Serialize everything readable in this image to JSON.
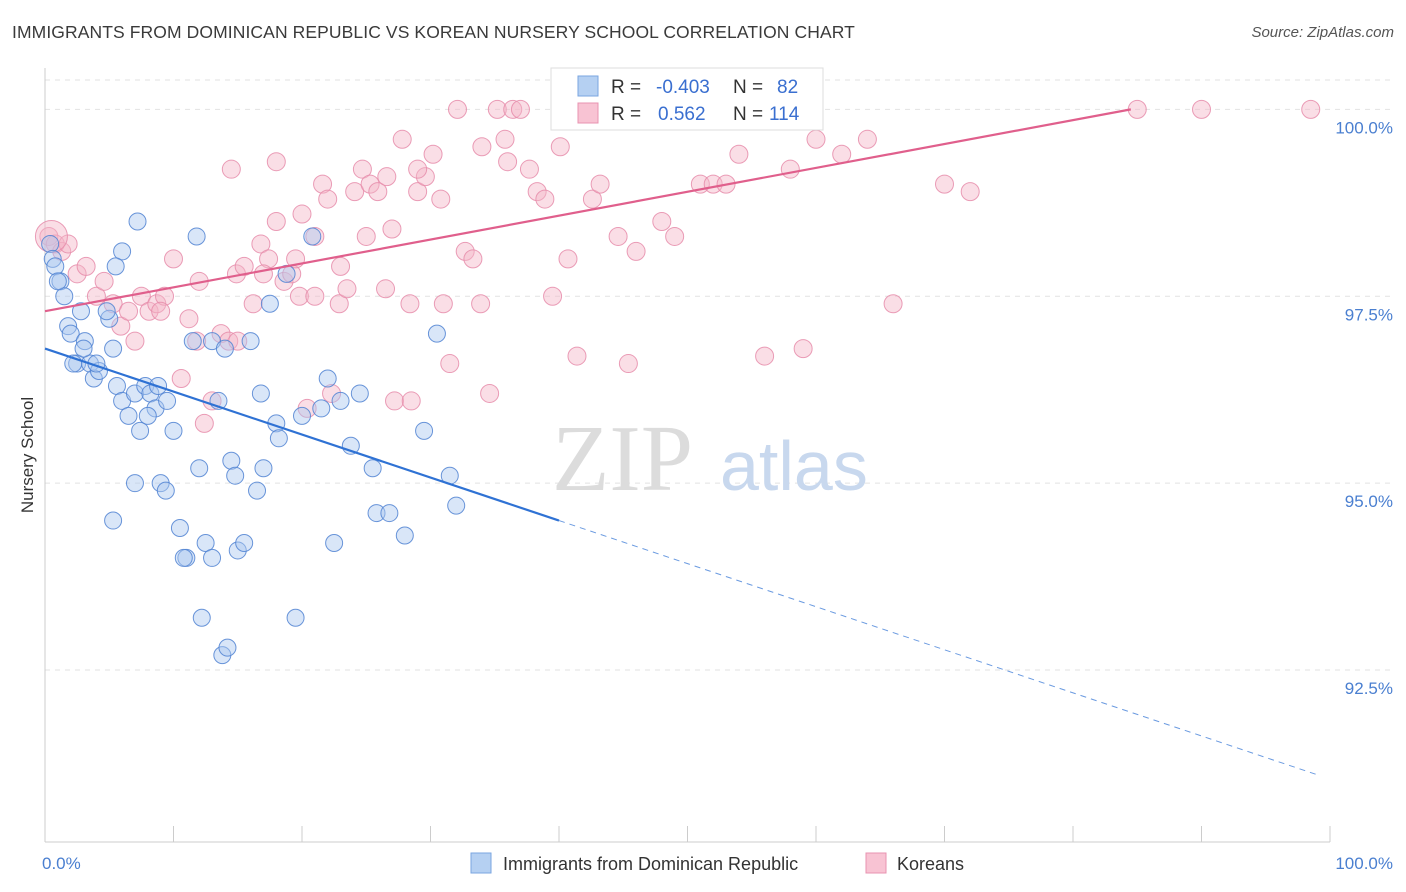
{
  "title": "IMMIGRANTS FROM DOMINICAN REPUBLIC VS KOREAN NURSERY SCHOOL CORRELATION CHART",
  "source": "Source: ZipAtlas.com",
  "watermark": {
    "zip": "ZIP",
    "atlas": "atlas"
  },
  "colors": {
    "blue": "#4a86d8",
    "blue_fill": "#aac8f0",
    "pink": "#e06690",
    "pink_fill": "#f5b5c8",
    "grid": "#dddddd",
    "tick_label": "#4a7fd0"
  },
  "legend_top": {
    "rows": [
      {
        "r_label": "R =",
        "r_value": "-0.403",
        "n_label": "N =",
        "n_value": "82"
      },
      {
        "r_label": "R =",
        "r_value": "0.562",
        "n_label": "N =",
        "n_value": "114"
      }
    ]
  },
  "legend_bottom": [
    "Immigrants from Dominican Republic",
    "Koreans"
  ],
  "chart_data": {
    "type": "scatter",
    "title": "IMMIGRANTS FROM DOMINICAN REPUBLIC VS KOREAN NURSERY SCHOOL CORRELATION CHART",
    "xlabel": "",
    "ylabel": "Nursery School",
    "xlim": [
      0,
      100
    ],
    "ylim": [
      90.2,
      100.5
    ],
    "x_tick_labels": [
      "0.0%",
      "100.0%"
    ],
    "y_ticks": [
      92.5,
      95.0,
      97.5,
      100.0
    ],
    "y_tick_labels": [
      "92.5%",
      "95.0%",
      "97.5%",
      "100.0%"
    ],
    "grid": true,
    "legend_placement": "bottom",
    "series": [
      {
        "name": "Immigrants from Dominican Republic",
        "r": -0.403,
        "n": 82,
        "trend": {
          "x0": 0,
          "y0": 96.8,
          "x1": 40,
          "y1": 94.5,
          "dashed_to_x": 99,
          "dashed_to_y": 91.1
        },
        "points": [
          [
            0.4,
            98.2
          ],
          [
            0.6,
            98.0
          ],
          [
            0.8,
            97.9
          ],
          [
            1.2,
            97.7
          ],
          [
            1.5,
            97.5
          ],
          [
            1.8,
            97.1
          ],
          [
            2.0,
            97.0
          ],
          [
            2.5,
            96.6
          ],
          [
            2.8,
            97.3
          ],
          [
            3.1,
            96.9
          ],
          [
            3.5,
            96.6
          ],
          [
            3.8,
            96.4
          ],
          [
            4.2,
            96.5
          ],
          [
            5.0,
            97.2
          ],
          [
            5.3,
            96.8
          ],
          [
            5.6,
            96.3
          ],
          [
            6.0,
            96.1
          ],
          [
            6.5,
            95.9
          ],
          [
            7.0,
            96.2
          ],
          [
            7.4,
            95.7
          ],
          [
            7.8,
            96.3
          ],
          [
            8.2,
            96.2
          ],
          [
            8.6,
            96.0
          ],
          [
            9.0,
            95.0
          ],
          [
            9.4,
            94.9
          ],
          [
            10.0,
            95.7
          ],
          [
            10.5,
            94.4
          ],
          [
            11.0,
            94.0
          ],
          [
            11.5,
            96.9
          ],
          [
            12.0,
            95.2
          ],
          [
            12.5,
            94.2
          ],
          [
            13.0,
            96.9
          ],
          [
            13.5,
            96.1
          ],
          [
            14.0,
            96.8
          ],
          [
            14.5,
            95.3
          ],
          [
            15.0,
            94.1
          ],
          [
            15.5,
            94.2
          ],
          [
            16.0,
            96.9
          ],
          [
            16.5,
            94.9
          ],
          [
            17.0,
            95.2
          ],
          [
            17.5,
            97.4
          ],
          [
            18.0,
            95.8
          ],
          [
            18.8,
            97.8
          ],
          [
            19.5,
            93.2
          ],
          [
            20.0,
            95.9
          ],
          [
            20.8,
            98.3
          ],
          [
            21.5,
            96.0
          ],
          [
            22.0,
            96.4
          ],
          [
            22.5,
            94.2
          ],
          [
            23.0,
            96.1
          ],
          [
            23.8,
            95.5
          ],
          [
            24.5,
            96.2
          ],
          [
            25.5,
            95.2
          ],
          [
            25.8,
            94.6
          ],
          [
            26.8,
            94.6
          ],
          [
            28.0,
            94.3
          ],
          [
            29.5,
            95.7
          ],
          [
            30.5,
            97.0
          ],
          [
            31.5,
            95.1
          ],
          [
            32.0,
            94.7
          ],
          [
            6.0,
            98.1
          ],
          [
            5.5,
            97.9
          ],
          [
            7.2,
            98.5
          ],
          [
            11.8,
            98.3
          ],
          [
            9.5,
            96.1
          ],
          [
            12.2,
            93.2
          ],
          [
            13.8,
            92.7
          ],
          [
            14.2,
            92.8
          ],
          [
            8.8,
            96.3
          ],
          [
            10.8,
            94.0
          ],
          [
            4.0,
            96.6
          ],
          [
            3.0,
            96.8
          ],
          [
            2.2,
            96.6
          ],
          [
            1.0,
            97.7
          ],
          [
            4.8,
            97.3
          ],
          [
            8.0,
            95.9
          ],
          [
            13.0,
            94.0
          ],
          [
            14.8,
            95.1
          ],
          [
            16.8,
            96.2
          ],
          [
            18.2,
            95.6
          ],
          [
            5.3,
            94.5
          ],
          [
            7.0,
            95.0
          ]
        ]
      },
      {
        "name": "Koreans",
        "r": 0.562,
        "n": 114,
        "trend": {
          "x0": 0,
          "y0": 97.3,
          "x1": 84.5,
          "y1": 100.0
        },
        "points": [
          [
            0.3,
            98.3
          ],
          [
            0.8,
            98.2
          ],
          [
            1.3,
            98.1
          ],
          [
            1.8,
            98.2
          ],
          [
            2.5,
            97.8
          ],
          [
            3.2,
            97.9
          ],
          [
            4.0,
            97.5
          ],
          [
            4.6,
            97.7
          ],
          [
            5.3,
            97.4
          ],
          [
            5.9,
            97.1
          ],
          [
            6.5,
            97.3
          ],
          [
            7.0,
            96.9
          ],
          [
            7.5,
            97.5
          ],
          [
            8.1,
            97.3
          ],
          [
            8.7,
            97.4
          ],
          [
            9.3,
            97.5
          ],
          [
            10.0,
            98.0
          ],
          [
            10.6,
            96.4
          ],
          [
            11.2,
            97.2
          ],
          [
            11.8,
            96.9
          ],
          [
            12.4,
            95.8
          ],
          [
            13.0,
            96.1
          ],
          [
            13.7,
            97.0
          ],
          [
            14.3,
            96.9
          ],
          [
            14.9,
            97.8
          ],
          [
            15.5,
            97.9
          ],
          [
            16.2,
            97.4
          ],
          [
            16.8,
            98.2
          ],
          [
            17.4,
            98.0
          ],
          [
            18.0,
            98.5
          ],
          [
            18.6,
            97.7
          ],
          [
            19.2,
            97.8
          ],
          [
            19.8,
            97.5
          ],
          [
            20.4,
            96.0
          ],
          [
            21.0,
            97.5
          ],
          [
            21.6,
            99.0
          ],
          [
            22.3,
            96.2
          ],
          [
            22.9,
            97.4
          ],
          [
            23.5,
            97.6
          ],
          [
            24.1,
            98.9
          ],
          [
            24.7,
            99.2
          ],
          [
            25.3,
            99.0
          ],
          [
            25.9,
            98.9
          ],
          [
            26.6,
            99.1
          ],
          [
            27.2,
            96.1
          ],
          [
            27.8,
            99.6
          ],
          [
            28.4,
            97.4
          ],
          [
            29.0,
            98.9
          ],
          [
            29.6,
            99.1
          ],
          [
            30.2,
            99.4
          ],
          [
            30.8,
            98.8
          ],
          [
            31.5,
            96.6
          ],
          [
            32.1,
            100.0
          ],
          [
            32.7,
            98.1
          ],
          [
            33.3,
            98.0
          ],
          [
            33.9,
            97.4
          ],
          [
            34.6,
            96.2
          ],
          [
            35.2,
            100.0
          ],
          [
            35.8,
            99.6
          ],
          [
            36.4,
            100.0
          ],
          [
            37.0,
            100.0
          ],
          [
            37.7,
            99.2
          ],
          [
            38.3,
            98.9
          ],
          [
            38.9,
            98.8
          ],
          [
            39.5,
            97.5
          ],
          [
            40.1,
            99.5
          ],
          [
            40.7,
            98.0
          ],
          [
            41.4,
            96.7
          ],
          [
            42.0,
            100.0
          ],
          [
            42.6,
            98.8
          ],
          [
            43.2,
            99.0
          ],
          [
            44.0,
            100.0
          ],
          [
            44.6,
            98.3
          ],
          [
            45.4,
            96.6
          ],
          [
            46.0,
            98.1
          ],
          [
            47.0,
            100.0
          ],
          [
            48.0,
            98.5
          ],
          [
            49.0,
            98.3
          ],
          [
            50.0,
            100.0
          ],
          [
            51.0,
            99.0
          ],
          [
            52.0,
            99.0
          ],
          [
            53.0,
            99.0
          ],
          [
            54.0,
            99.4
          ],
          [
            56.0,
            96.7
          ],
          [
            58.0,
            99.2
          ],
          [
            59.0,
            96.8
          ],
          [
            60.0,
            99.6
          ],
          [
            62.0,
            99.4
          ],
          [
            64.0,
            99.6
          ],
          [
            66.0,
            97.4
          ],
          [
            70.0,
            99.0
          ],
          [
            72.0,
            98.9
          ],
          [
            85.0,
            100.0
          ],
          [
            90.0,
            100.0
          ],
          [
            98.5,
            100.0
          ],
          [
            18.0,
            99.3
          ],
          [
            14.5,
            99.2
          ],
          [
            20.0,
            98.6
          ],
          [
            26.5,
            97.6
          ],
          [
            28.5,
            96.1
          ],
          [
            31.0,
            97.4
          ],
          [
            22.0,
            98.8
          ],
          [
            34.0,
            99.5
          ],
          [
            36.0,
            99.3
          ],
          [
            12.0,
            97.7
          ],
          [
            9.0,
            97.3
          ],
          [
            15.0,
            96.9
          ],
          [
            17.0,
            97.8
          ],
          [
            19.5,
            98.0
          ],
          [
            21.0,
            98.3
          ],
          [
            23.0,
            97.9
          ],
          [
            25.0,
            98.3
          ],
          [
            27.0,
            98.4
          ],
          [
            29.0,
            99.2
          ]
        ]
      }
    ]
  }
}
